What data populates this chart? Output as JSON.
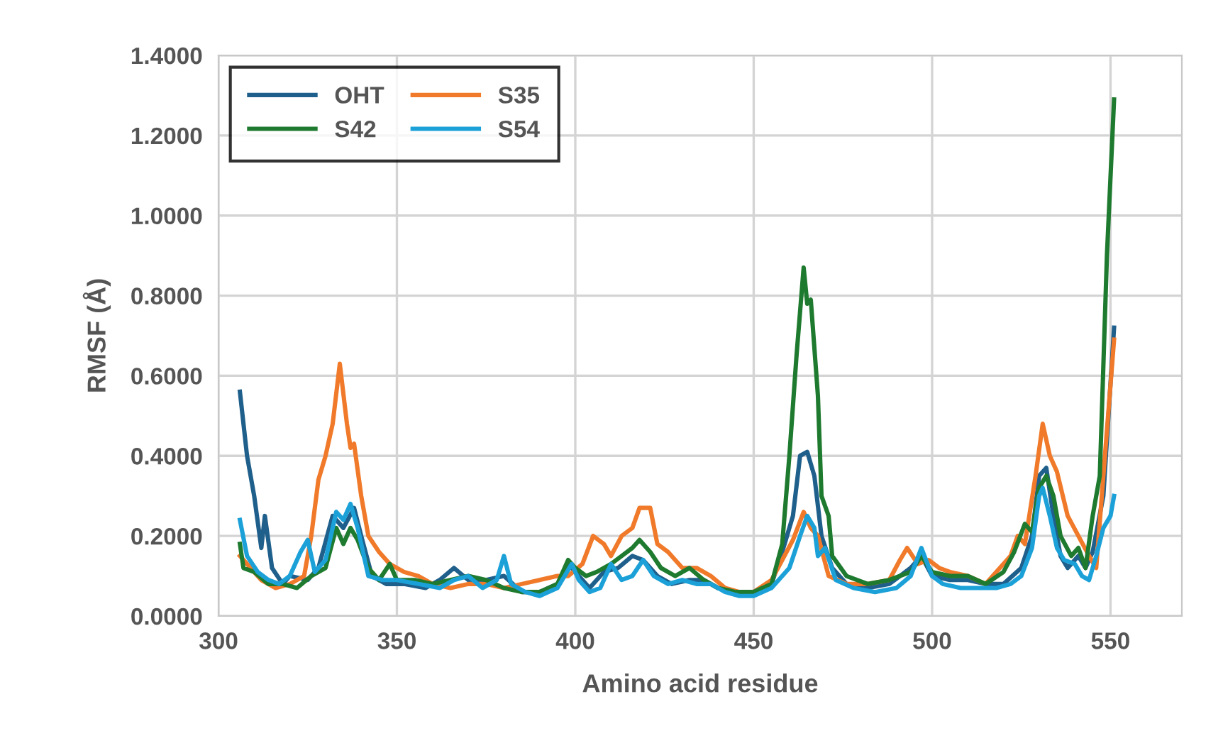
{
  "chart_data": {
    "type": "line",
    "xlabel": "Amino acid residue",
    "ylabel": "RMSF (Å)",
    "xlim": [
      300,
      570
    ],
    "xticks": [
      300,
      350,
      400,
      450,
      500,
      550
    ],
    "ylim": [
      0,
      1.4
    ],
    "yticks": [
      {
        "value": 0,
        "label": "0.0000"
      },
      {
        "value": 0.2,
        "label": "0.2000"
      },
      {
        "value": 0.4,
        "label": "0.4000"
      },
      {
        "value": 0.6,
        "label": "0.6000"
      },
      {
        "value": 0.8,
        "label": "0.8000"
      },
      {
        "value": 1.0,
        "label": "1.0000"
      },
      {
        "value": 1.2,
        "label": "1.2000"
      },
      {
        "value": 1.4,
        "label": "1.4000"
      }
    ],
    "grid": true,
    "legend": "top left",
    "marker": "none",
    "line_style": "solid",
    "series": [
      {
        "name": "OHT",
        "color": "#1f5f8b",
        "x": [
          306,
          308,
          310,
          312,
          313,
          315,
          318,
          320,
          325,
          328,
          332,
          335,
          338,
          340,
          343,
          347,
          352,
          358,
          362,
          366,
          370,
          375,
          380,
          385,
          390,
          395,
          398,
          401,
          404,
          408,
          412,
          416,
          419,
          423,
          427,
          432,
          436,
          440,
          445,
          450,
          455,
          458,
          461,
          463,
          465,
          467,
          469,
          472,
          476,
          482,
          488,
          494,
          497,
          500,
          505,
          510,
          515,
          520,
          525,
          528,
          530,
          532,
          534,
          536,
          538,
          541,
          543,
          545,
          548,
          551
        ],
        "values": [
          0.56,
          0.4,
          0.3,
          0.17,
          0.25,
          0.12,
          0.08,
          0.1,
          0.09,
          0.12,
          0.25,
          0.22,
          0.27,
          0.2,
          0.1,
          0.08,
          0.08,
          0.07,
          0.09,
          0.12,
          0.09,
          0.09,
          0.1,
          0.06,
          0.06,
          0.08,
          0.13,
          0.1,
          0.07,
          0.11,
          0.12,
          0.15,
          0.14,
          0.1,
          0.08,
          0.09,
          0.09,
          0.07,
          0.06,
          0.06,
          0.08,
          0.16,
          0.25,
          0.4,
          0.41,
          0.35,
          0.2,
          0.12,
          0.08,
          0.07,
          0.08,
          0.12,
          0.15,
          0.1,
          0.09,
          0.09,
          0.08,
          0.08,
          0.12,
          0.2,
          0.35,
          0.37,
          0.25,
          0.15,
          0.12,
          0.15,
          0.12,
          0.16,
          0.3,
          0.72
        ]
      },
      {
        "name": "S35",
        "color": "#f07a2a",
        "x": [
          306,
          308,
          312,
          316,
          320,
          324,
          326,
          328,
          330,
          332,
          334,
          336,
          337,
          338,
          340,
          342,
          345,
          348,
          352,
          356,
          360,
          365,
          370,
          375,
          380,
          385,
          390,
          395,
          398,
          402,
          405,
          408,
          410,
          413,
          416,
          418,
          421,
          423,
          426,
          430,
          434,
          438,
          442,
          446,
          450,
          455,
          458,
          461,
          464,
          466,
          468,
          471,
          476,
          482,
          488,
          491,
          493,
          496,
          499,
          502,
          505,
          510,
          515,
          519,
          522,
          524,
          526,
          529,
          531,
          533,
          535,
          538,
          541,
          544,
          546,
          548,
          551
        ],
        "values": [
          0.15,
          0.13,
          0.09,
          0.07,
          0.08,
          0.1,
          0.2,
          0.34,
          0.4,
          0.48,
          0.63,
          0.48,
          0.42,
          0.43,
          0.3,
          0.2,
          0.16,
          0.13,
          0.11,
          0.1,
          0.08,
          0.07,
          0.08,
          0.08,
          0.07,
          0.08,
          0.09,
          0.1,
          0.1,
          0.13,
          0.2,
          0.18,
          0.15,
          0.2,
          0.22,
          0.27,
          0.27,
          0.18,
          0.16,
          0.12,
          0.12,
          0.1,
          0.07,
          0.06,
          0.06,
          0.09,
          0.14,
          0.19,
          0.26,
          0.22,
          0.2,
          0.1,
          0.08,
          0.08,
          0.09,
          0.14,
          0.17,
          0.13,
          0.14,
          0.12,
          0.11,
          0.1,
          0.08,
          0.12,
          0.15,
          0.2,
          0.18,
          0.35,
          0.48,
          0.4,
          0.36,
          0.25,
          0.2,
          0.15,
          0.12,
          0.35,
          0.69
        ]
      },
      {
        "name": "S42",
        "color": "#1e7a2e",
        "x": [
          306,
          307,
          310,
          314,
          318,
          322,
          326,
          330,
          333,
          335,
          337,
          339,
          342,
          345,
          348,
          350,
          355,
          360,
          365,
          370,
          375,
          380,
          385,
          390,
          395,
          398,
          400,
          403,
          406,
          410,
          413,
          416,
          418,
          421,
          424,
          428,
          432,
          436,
          440,
          445,
          450,
          455,
          458,
          460,
          462,
          464,
          465,
          466,
          468,
          469,
          471,
          472,
          476,
          482,
          488,
          494,
          497,
          500,
          505,
          510,
          515,
          520,
          523,
          526,
          528,
          530,
          532,
          534,
          536,
          539,
          541,
          543,
          545,
          547,
          549,
          551
        ],
        "values": [
          0.18,
          0.12,
          0.11,
          0.08,
          0.08,
          0.07,
          0.1,
          0.12,
          0.22,
          0.18,
          0.22,
          0.19,
          0.12,
          0.09,
          0.13,
          0.09,
          0.09,
          0.08,
          0.09,
          0.1,
          0.09,
          0.07,
          0.06,
          0.06,
          0.08,
          0.14,
          0.12,
          0.1,
          0.11,
          0.13,
          0.15,
          0.17,
          0.19,
          0.16,
          0.12,
          0.1,
          0.12,
          0.09,
          0.07,
          0.06,
          0.06,
          0.08,
          0.18,
          0.4,
          0.65,
          0.87,
          0.78,
          0.79,
          0.55,
          0.3,
          0.25,
          0.15,
          0.1,
          0.08,
          0.09,
          0.11,
          0.15,
          0.11,
          0.1,
          0.1,
          0.08,
          0.11,
          0.16,
          0.23,
          0.21,
          0.32,
          0.35,
          0.3,
          0.2,
          0.15,
          0.17,
          0.12,
          0.25,
          0.35,
          0.9,
          1.29
        ]
      },
      {
        "name": "S54",
        "color": "#1ba1d8",
        "x": [
          306,
          308,
          311,
          314,
          317,
          320,
          323,
          325,
          327,
          330,
          333,
          335,
          337,
          339,
          342,
          346,
          350,
          356,
          362,
          366,
          370,
          374,
          378,
          380,
          382,
          386,
          390,
          395,
          399,
          401,
          404,
          407,
          410,
          413,
          416,
          419,
          422,
          426,
          430,
          434,
          438,
          442,
          446,
          450,
          455,
          460,
          463,
          465,
          467,
          468,
          470,
          473,
          478,
          484,
          490,
          494,
          497,
          500,
          503,
          508,
          513,
          518,
          522,
          525,
          528,
          530,
          531,
          533,
          535,
          537,
          540,
          542,
          544,
          546,
          548,
          550,
          551
        ],
        "values": [
          0.24,
          0.15,
          0.11,
          0.09,
          0.08,
          0.1,
          0.16,
          0.19,
          0.11,
          0.14,
          0.26,
          0.24,
          0.28,
          0.22,
          0.1,
          0.09,
          0.09,
          0.08,
          0.07,
          0.09,
          0.1,
          0.07,
          0.09,
          0.15,
          0.08,
          0.06,
          0.05,
          0.07,
          0.13,
          0.09,
          0.06,
          0.07,
          0.13,
          0.09,
          0.1,
          0.14,
          0.1,
          0.08,
          0.09,
          0.08,
          0.08,
          0.06,
          0.05,
          0.05,
          0.07,
          0.12,
          0.2,
          0.25,
          0.22,
          0.15,
          0.17,
          0.09,
          0.07,
          0.06,
          0.07,
          0.1,
          0.17,
          0.1,
          0.08,
          0.07,
          0.07,
          0.07,
          0.08,
          0.1,
          0.17,
          0.3,
          0.32,
          0.25,
          0.17,
          0.14,
          0.13,
          0.1,
          0.09,
          0.15,
          0.22,
          0.25,
          0.3
        ]
      }
    ]
  }
}
